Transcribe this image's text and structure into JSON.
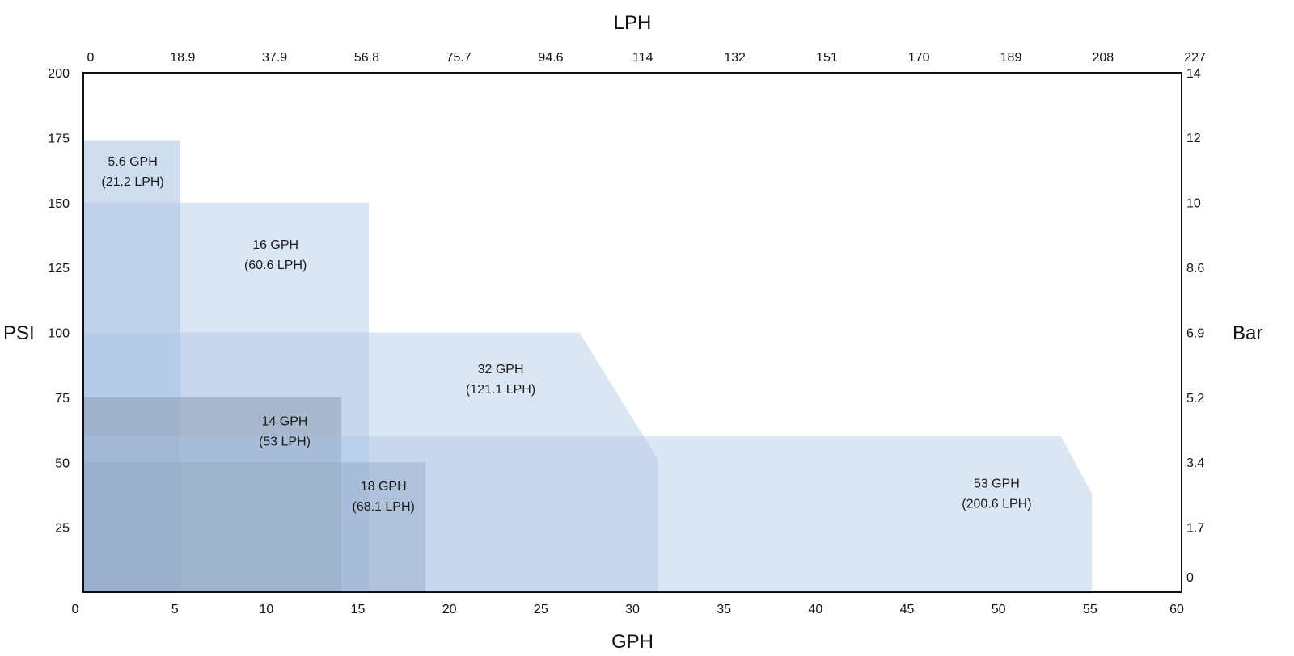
{
  "chart_data": {
    "type": "area",
    "title": "",
    "axes": {
      "bottom": {
        "label": "GPH",
        "range": [
          0,
          60
        ],
        "ticks": [
          "0",
          "5",
          "10",
          "15",
          "20",
          "25",
          "30",
          "35",
          "40",
          "45",
          "50",
          "55",
          "60"
        ]
      },
      "top": {
        "label": "LPH",
        "ticks": [
          "0",
          "18.9",
          "37.9",
          "56.8",
          "75.7",
          "94.6",
          "114",
          "132",
          "151",
          "170",
          "189",
          "208",
          "227"
        ]
      },
      "left": {
        "label": "PSI",
        "range": [
          0,
          200
        ],
        "ticks": [
          "25",
          "50",
          "75",
          "100",
          "125",
          "150",
          "175",
          "200"
        ]
      },
      "right": {
        "label": "Bar",
        "ticks": [
          "0",
          "1.7",
          "3.4",
          "5.2",
          "6.9",
          "8.6",
          "10",
          "12",
          "14"
        ]
      }
    },
    "grid": false,
    "series": [
      {
        "line1": "5.6 GPH",
        "line2": "(21.2 LPH)",
        "color": "#8fafd6",
        "opacity": 0.42,
        "outline": [
          [
            0,
            0
          ],
          [
            5.3,
            0
          ],
          [
            5.3,
            174
          ],
          [
            0,
            174
          ]
        ],
        "label_at": [
          2.7,
          163
        ]
      },
      {
        "line1": "16 GPH",
        "line2": "(60.6 LPH)",
        "color": "#a9c4e4",
        "opacity": 0.42,
        "outline": [
          [
            0,
            0
          ],
          [
            15.6,
            0
          ],
          [
            15.6,
            150
          ],
          [
            0,
            150
          ]
        ],
        "label_at": [
          10.5,
          131
        ]
      },
      {
        "line1": "32 GPH",
        "line2": "(121.1 LPH)",
        "color": "#a9c4e4",
        "opacity": 0.42,
        "outline": [
          [
            0,
            0
          ],
          [
            31.4,
            0
          ],
          [
            31.4,
            51
          ],
          [
            27.1,
            100
          ],
          [
            0,
            100
          ]
        ],
        "label_at": [
          22.8,
          83
        ]
      },
      {
        "line1": "14 GPH",
        "line2": "(53 LPH)",
        "color": "#7f8ea3",
        "opacity": 0.42,
        "outline": [
          [
            0,
            0
          ],
          [
            14.1,
            0
          ],
          [
            14.1,
            75
          ],
          [
            0,
            75
          ]
        ],
        "label_at": [
          11,
          63
        ]
      },
      {
        "line1": "18 GPH",
        "line2": "(68.1 LPH)",
        "color": "#7f8ea3",
        "opacity": 0.42,
        "outline": [
          [
            0,
            0
          ],
          [
            18.7,
            0
          ],
          [
            18.7,
            50
          ],
          [
            0,
            50
          ]
        ],
        "label_at": [
          16.4,
          38
        ]
      },
      {
        "line1": "53 GPH",
        "line2": "(200.6 LPH)",
        "color": "#a9c4e4",
        "opacity": 0.42,
        "outline": [
          [
            0,
            0
          ],
          [
            55.1,
            0
          ],
          [
            55.1,
            38
          ],
          [
            53.4,
            60
          ],
          [
            0,
            60
          ]
        ],
        "label_at": [
          49.9,
          39
        ]
      }
    ]
  }
}
